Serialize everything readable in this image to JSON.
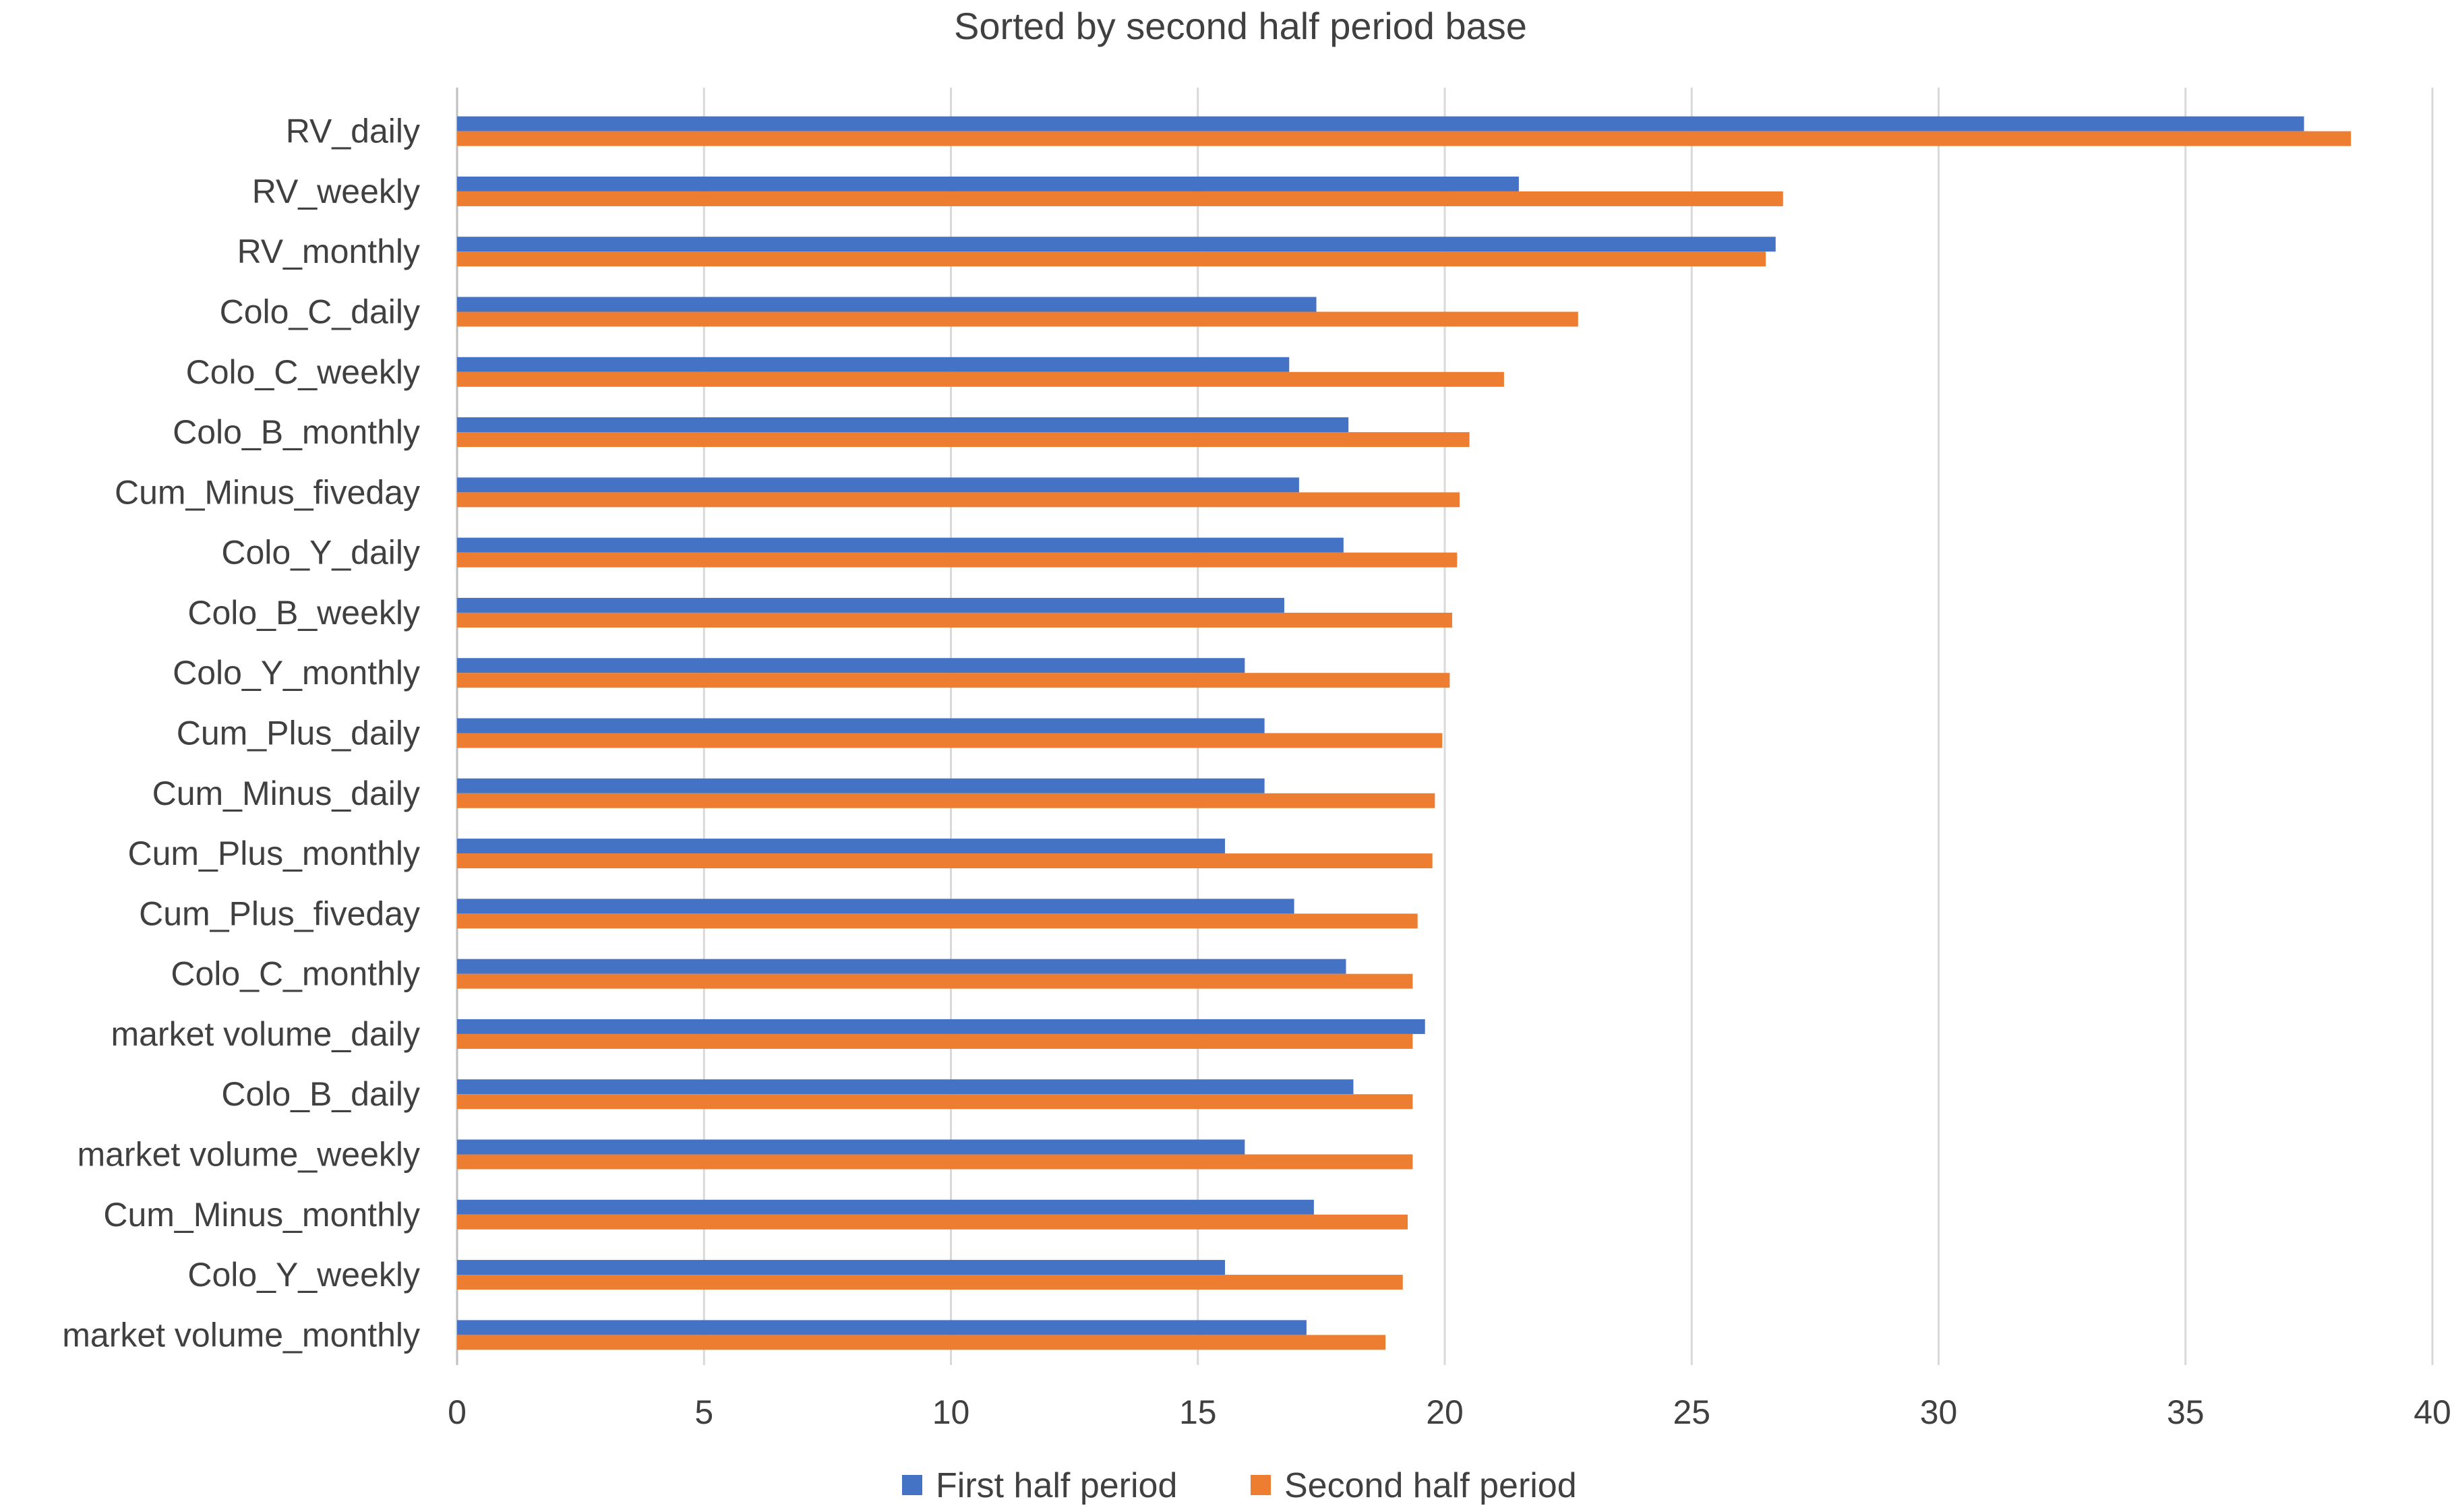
{
  "chart_data": {
    "type": "bar",
    "orientation": "horizontal",
    "title": "Sorted by second half period base",
    "xlabel": "",
    "ylabel": "",
    "xlim": [
      0,
      40
    ],
    "x_ticks": [
      0,
      5,
      10,
      15,
      20,
      25,
      30,
      35,
      40
    ],
    "grid": "vertical",
    "legend_position": "bottom",
    "categories": [
      "RV_daily",
      "RV_weekly",
      "RV_monthly",
      "Colo_C_daily",
      "Colo_C_weekly",
      "Colo_B_monthly",
      "Cum_Minus_fiveday",
      "Colo_Y_daily",
      "Colo_B_weekly",
      "Colo_Y_monthly",
      "Cum_Plus_daily",
      "Cum_Minus_daily",
      "Cum_Plus_monthly",
      "Cum_Plus_fiveday",
      "Colo_C_monthly",
      "market volume_daily",
      "Colo_B_daily",
      "market volume_weekly",
      "Cum_Minus_monthly",
      "Colo_Y_weekly",
      "market volume_monthly"
    ],
    "series": [
      {
        "name": "First half period",
        "color": "#4472C4",
        "values": [
          37.4,
          21.5,
          26.7,
          17.4,
          16.85,
          18.05,
          17.05,
          17.95,
          16.75,
          15.95,
          16.35,
          16.35,
          15.55,
          16.95,
          18.0,
          19.6,
          18.15,
          15.95,
          17.35,
          15.55,
          17.2
        ]
      },
      {
        "name": "Second half period",
        "color": "#ED7D31",
        "values": [
          38.35,
          26.85,
          26.5,
          22.7,
          21.2,
          20.5,
          20.3,
          20.25,
          20.15,
          20.1,
          19.95,
          19.8,
          19.75,
          19.45,
          19.35,
          19.35,
          19.35,
          19.35,
          19.25,
          19.15,
          18.8
        ]
      }
    ]
  }
}
